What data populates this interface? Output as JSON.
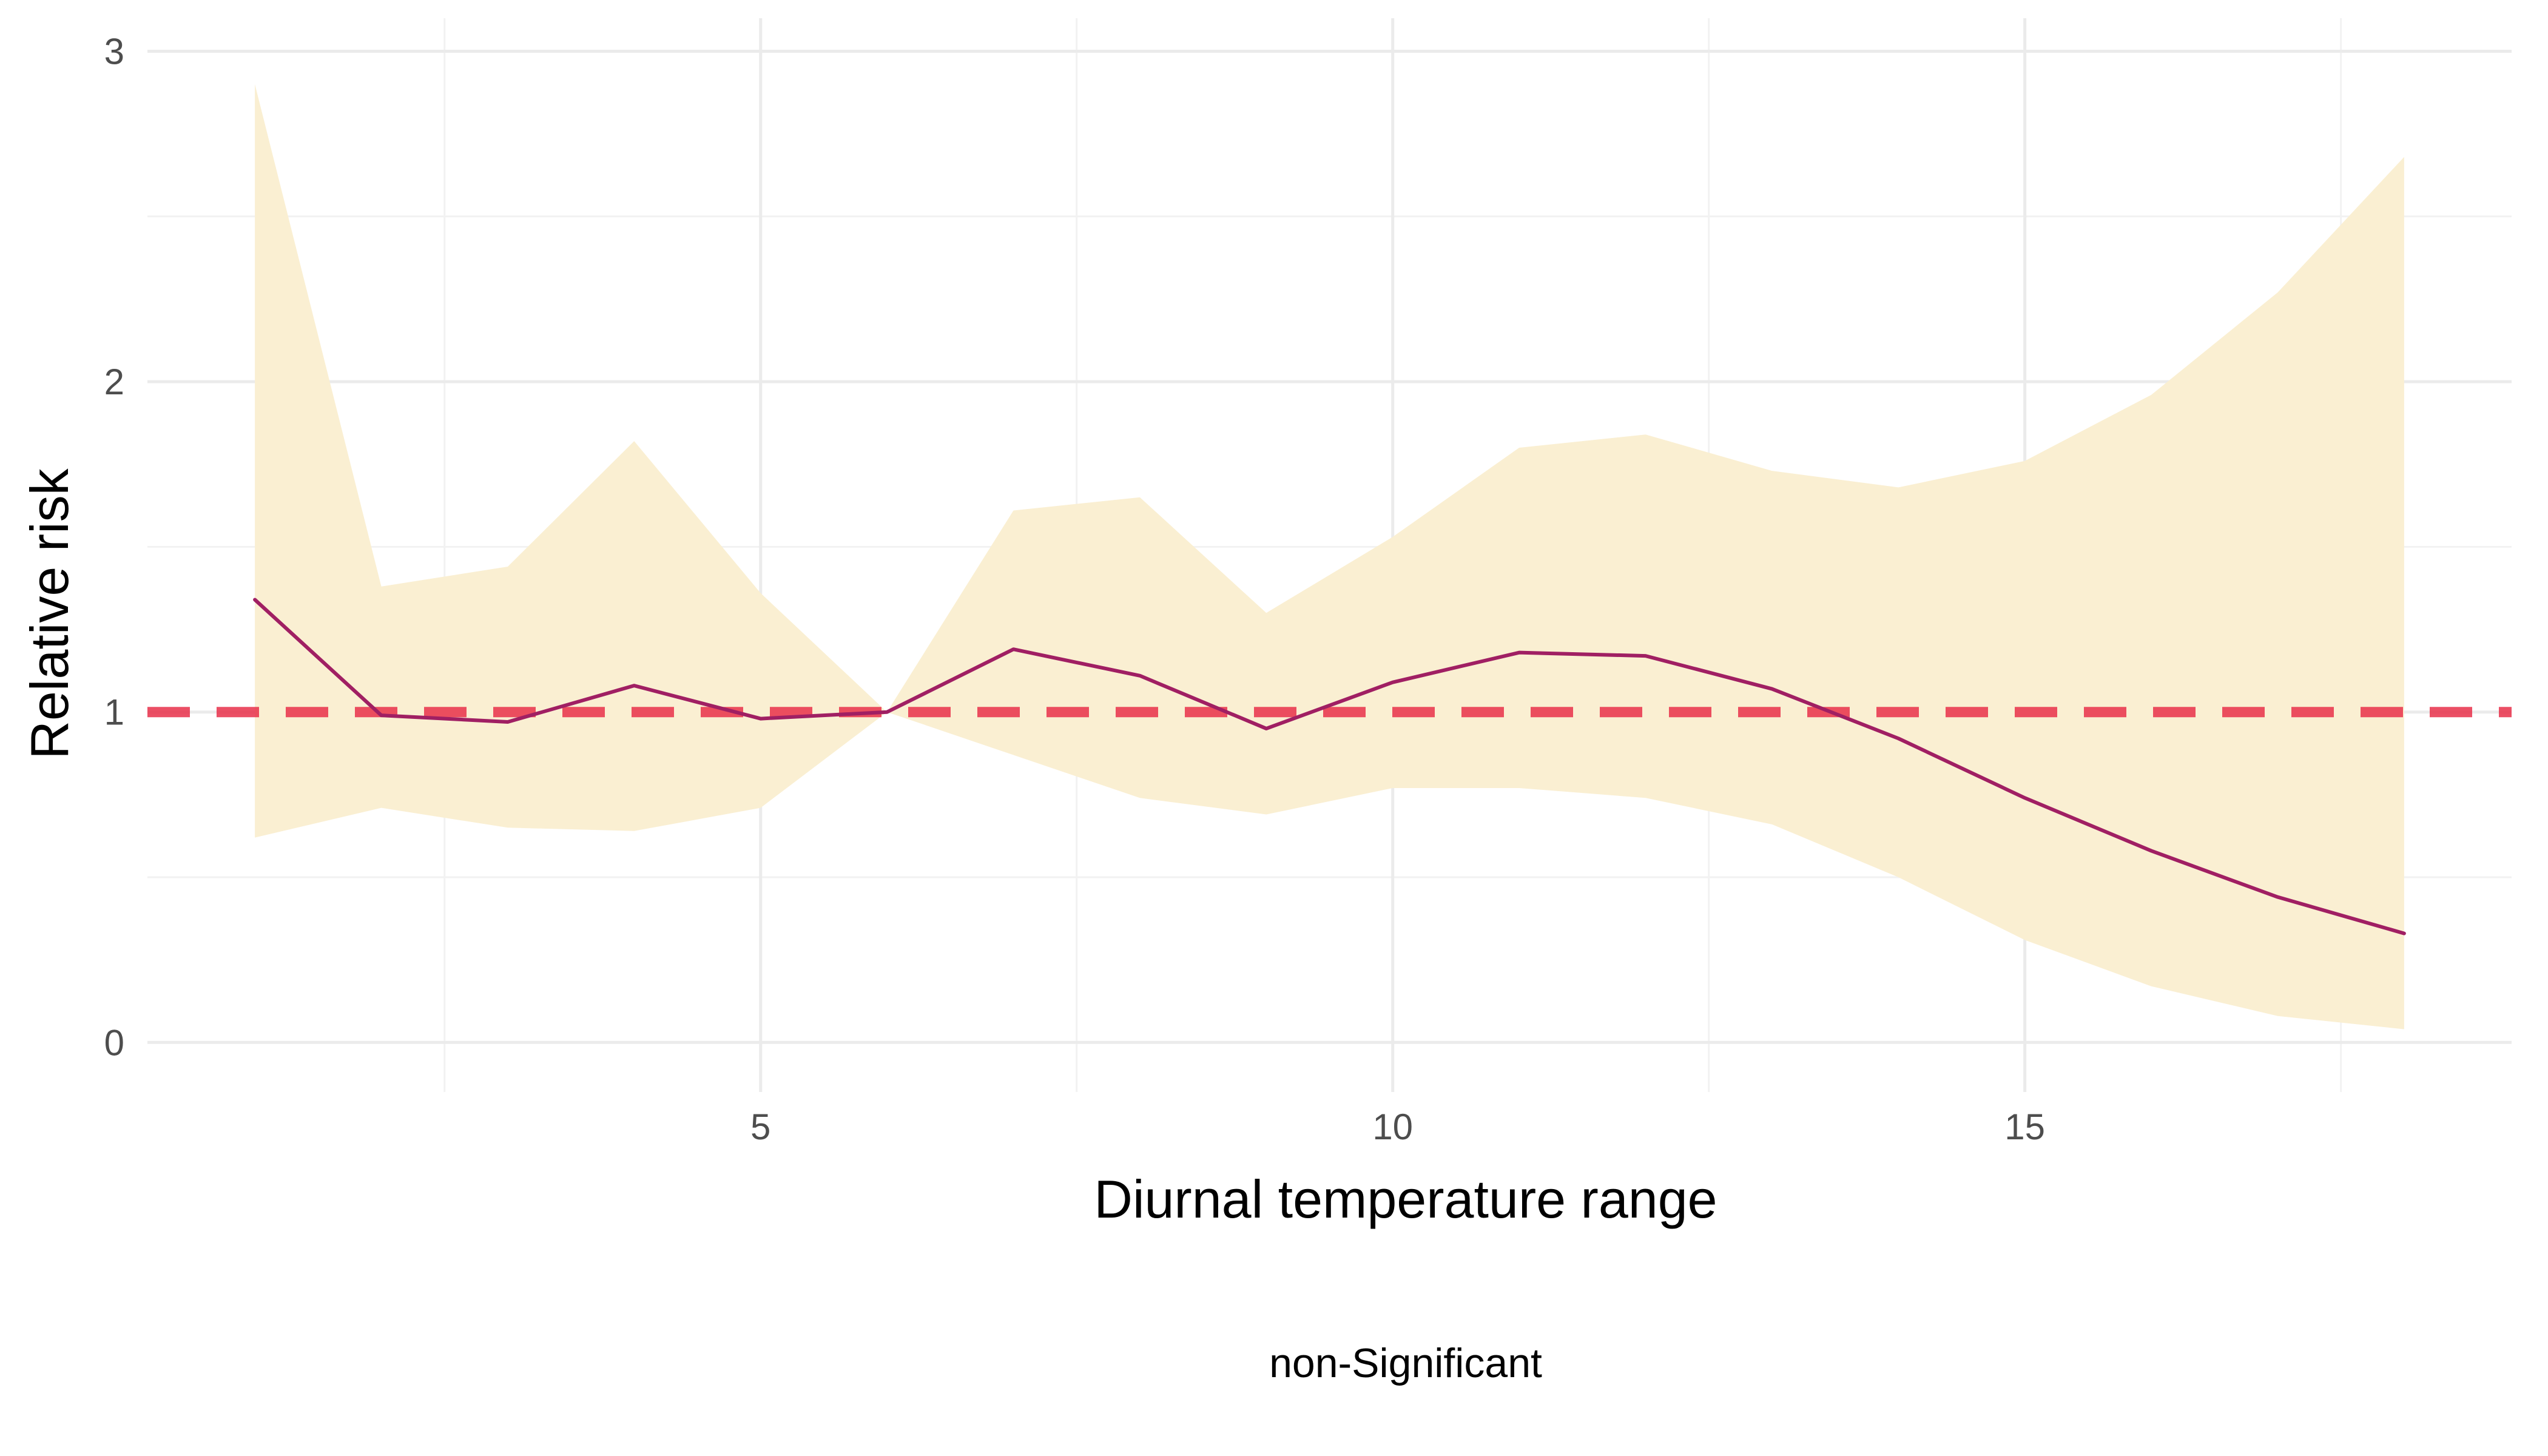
{
  "chart_data": {
    "type": "line",
    "title": "",
    "xlabel": "Diurnal temperature range",
    "ylabel": "Relative risk",
    "caption": "non-Significant",
    "xlim": [
      0.15,
      18.85
    ],
    "ylim": [
      -0.15,
      3.1
    ],
    "x_ticks": [
      5,
      10,
      15
    ],
    "y_ticks": [
      0,
      1,
      2,
      3
    ],
    "grid": true,
    "reference_line": {
      "y": 1,
      "style": "dashed",
      "color": "#e8304a"
    },
    "series": [
      {
        "x": [
          1,
          2,
          3,
          4,
          5,
          6,
          7,
          8,
          9,
          10,
          11,
          12,
          13,
          14,
          15,
          16,
          17,
          18
        ],
        "values": [
          1.34,
          0.99,
          0.97,
          1.08,
          0.98,
          1.0,
          1.19,
          1.11,
          0.95,
          1.09,
          1.18,
          1.17,
          1.07,
          0.92,
          0.74,
          0.58,
          0.44,
          0.33
        ],
        "lower": [
          0.62,
          0.71,
          0.65,
          0.64,
          0.71,
          1.0,
          0.87,
          0.74,
          0.69,
          0.77,
          0.77,
          0.74,
          0.66,
          0.5,
          0.31,
          0.17,
          0.08,
          0.04
        ],
        "upper": [
          2.9,
          1.38,
          1.44,
          1.82,
          1.36,
          1.0,
          1.61,
          1.65,
          1.3,
          1.53,
          1.8,
          1.84,
          1.73,
          1.68,
          1.76,
          1.96,
          2.27,
          2.68
        ],
        "line_color": "#a01f63",
        "band_color": "#faefd2"
      }
    ]
  }
}
